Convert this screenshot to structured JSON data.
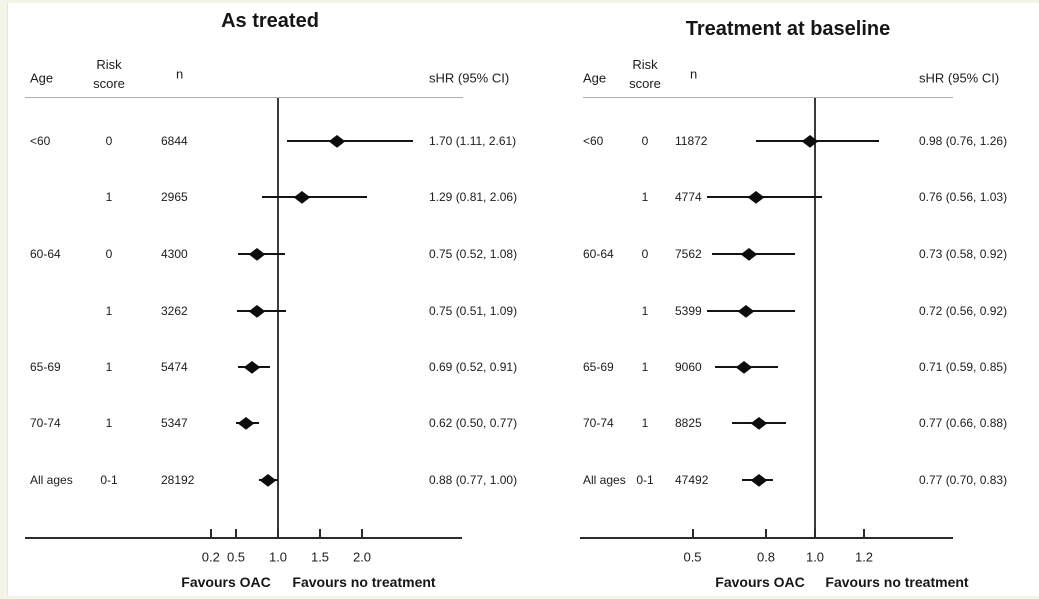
{
  "chart_data": [
    {
      "type": "forest",
      "title": "As treated",
      "col_headers": {
        "age": "Age",
        "risk_line1": "Risk",
        "risk_line2": "score",
        "n": "n",
        "shr": "sHR (95% CI)"
      },
      "rows": [
        {
          "age": "<60",
          "risk": "0",
          "n": "6844",
          "est": 1.7,
          "lo": 1.11,
          "hi": 2.61,
          "label": "1.70 (1.11, 2.61)"
        },
        {
          "age": "",
          "risk": "1",
          "n": "2965",
          "est": 1.29,
          "lo": 0.81,
          "hi": 2.06,
          "label": "1.29 (0.81, 2.06)"
        },
        {
          "age": "60-64",
          "risk": "0",
          "n": "4300",
          "est": 0.75,
          "lo": 0.52,
          "hi": 1.08,
          "label": "0.75 (0.52, 1.08)"
        },
        {
          "age": "",
          "risk": "1",
          "n": "3262",
          "est": 0.75,
          "lo": 0.51,
          "hi": 1.09,
          "label": "0.75 (0.51, 1.09)"
        },
        {
          "age": "65-69",
          "risk": "1",
          "n": "5474",
          "est": 0.69,
          "lo": 0.52,
          "hi": 0.91,
          "label": "0.69 (0.52, 0.91)"
        },
        {
          "age": "70-74",
          "risk": "1",
          "n": "5347",
          "est": 0.62,
          "lo": 0.5,
          "hi": 0.77,
          "label": "0.62 (0.50, 0.77)"
        },
        {
          "age": "All ages",
          "risk": "0-1",
          "n": "28192",
          "est": 0.88,
          "lo": 0.77,
          "hi": 1.0,
          "label": "0.88 (0.77, 1.00)"
        }
      ],
      "axis": {
        "scale": "linear",
        "ref_value": 1.0,
        "ticks": [
          0.2,
          0.5,
          1.0,
          1.5,
          2.0
        ],
        "tick_labels": [
          "0.2",
          "0.5",
          "1.0",
          "1.5",
          "2.0"
        ]
      },
      "footer": {
        "left": "Favours OAC",
        "right": "Favours no treatment"
      }
    },
    {
      "type": "forest",
      "title": "Treatment at baseline",
      "col_headers": {
        "age": "Age",
        "risk_line1": "Risk",
        "risk_line2": "score",
        "n": "n",
        "shr": "sHR (95% CI)"
      },
      "rows": [
        {
          "age": "<60",
          "risk": "0",
          "n": "11872",
          "est": 0.98,
          "lo": 0.76,
          "hi": 1.26,
          "label": "0.98 (0.76, 1.26)"
        },
        {
          "age": "",
          "risk": "1",
          "n": "4774",
          "est": 0.76,
          "lo": 0.56,
          "hi": 1.03,
          "label": "0.76 (0.56, 1.03)"
        },
        {
          "age": "60-64",
          "risk": "0",
          "n": "7562",
          "est": 0.73,
          "lo": 0.58,
          "hi": 0.92,
          "label": "0.73 (0.58, 0.92)"
        },
        {
          "age": "",
          "risk": "1",
          "n": "5399",
          "est": 0.72,
          "lo": 0.56,
          "hi": 0.92,
          "label": "0.72 (0.56, 0.92)"
        },
        {
          "age": "65-69",
          "risk": "1",
          "n": "9060",
          "est": 0.71,
          "lo": 0.59,
          "hi": 0.85,
          "label": "0.71 (0.59, 0.85)"
        },
        {
          "age": "70-74",
          "risk": "1",
          "n": "8825",
          "est": 0.77,
          "lo": 0.66,
          "hi": 0.88,
          "label": "0.77 (0.66, 0.88)"
        },
        {
          "age": "All ages",
          "risk": "0-1",
          "n": "47492",
          "est": 0.77,
          "lo": 0.7,
          "hi": 0.83,
          "label": "0.77 (0.70, 0.83)"
        }
      ],
      "axis": {
        "scale": "linear",
        "ref_value": 1.0,
        "ticks": [
          0.5,
          0.8,
          1.0,
          1.2
        ],
        "tick_labels": [
          "0.5",
          "0.8",
          "1.0",
          "1.2"
        ]
      },
      "footer": {
        "left": "Favours OAC",
        "right": "Favours no treatment"
      }
    }
  ]
}
